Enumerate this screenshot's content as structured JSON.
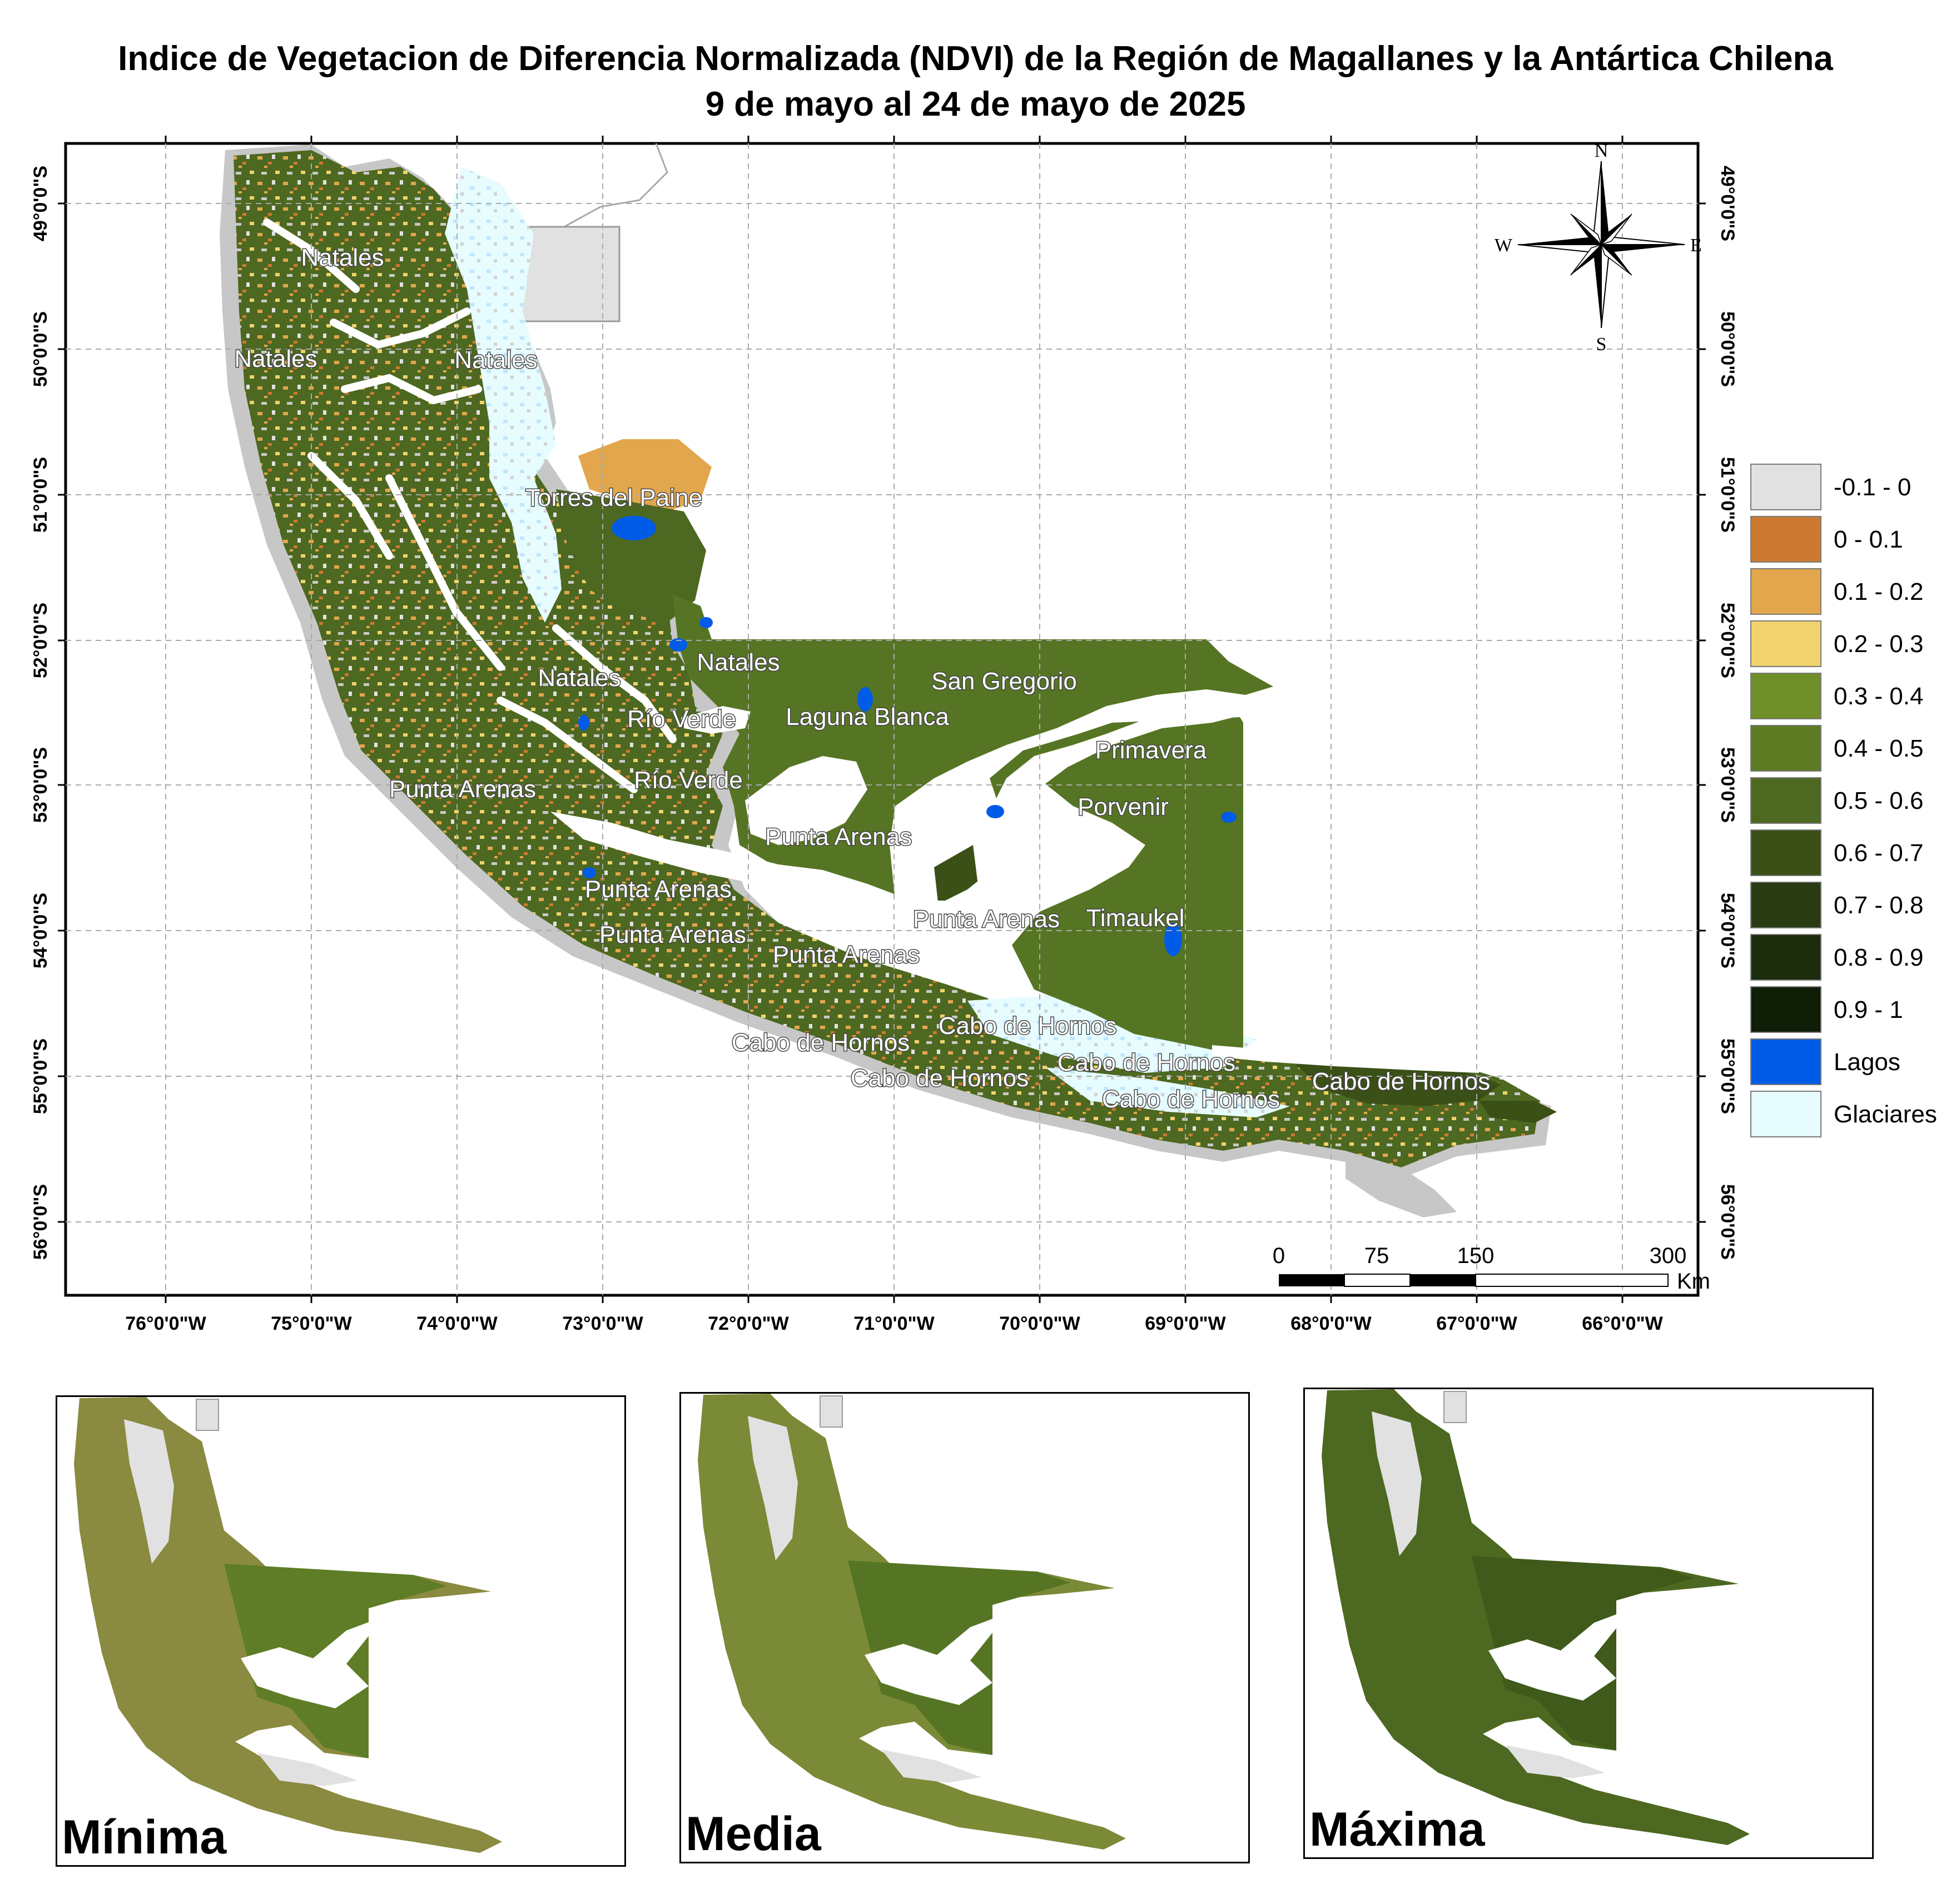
{
  "title": {
    "line1": "Indice de Vegetacion de Diferencia Normalizada (NDVI) de la Región de Magallanes y la Antártica Chilena",
    "line2": "9 de mayo al 24 de mayo de 2025"
  },
  "map": {
    "lon_ticks": [
      "76°0'0\"W",
      "75°0'0\"W",
      "74°0'0\"W",
      "73°0'0\"W",
      "72°0'0\"W",
      "71°0'0\"W",
      "70°0'0\"W",
      "69°0'0\"W",
      "68°0'0\"W",
      "67°0'0\"W",
      "66°0'0\"W"
    ],
    "lat_ticks": [
      "49°0'0\"S",
      "50°0'0\"S",
      "51°0'0\"S",
      "52°0'0\"S",
      "53°0'0\"S",
      "54°0'0\"S",
      "55°0'0\"S",
      "56°0'0\"S"
    ],
    "places": [
      "Natales",
      "Natales",
      "Natales",
      "Torres del Paine",
      "Natales",
      "Natales",
      "Río Verde",
      "Laguna Blanca",
      "San Gregorio",
      "Primavera",
      "Punta Arenas",
      "Río Verde",
      "Porvenir",
      "Punta Arenas",
      "Punta Arenas",
      "Punta Arenas",
      "Punta Arenas",
      "Timaukel",
      "Punta Arenas",
      "Cabo de Hornos",
      "Cabo de Hornos",
      "Cabo de Hornos",
      "Cabo de Hornos",
      "Cabo de Hornos",
      "Cabo de Hornos"
    ],
    "north_arrow": {
      "n": "N",
      "s": "S",
      "e": "E",
      "w": "W",
      "icon": "compass-rose-icon"
    },
    "scale_bar": {
      "labels": [
        "0",
        "75",
        "150",
        "300"
      ],
      "unit": "Km"
    }
  },
  "legend": [
    {
      "label": "-0.1 - 0",
      "color": "#e1e1e1"
    },
    {
      "label": "0 - 0.1",
      "color": "#cd7932"
    },
    {
      "label": "0.1 - 0.2",
      "color": "#e2a64c"
    },
    {
      "label": "0.2 - 0.3",
      "color": "#f0d36c"
    },
    {
      "label": "0.3 - 0.4",
      "color": "#6f8f2a"
    },
    {
      "label": "0.4 - 0.5",
      "color": "#5c7b22"
    },
    {
      "label": "0.5 - 0.6",
      "color": "#4d6820"
    },
    {
      "label": "0.6 - 0.7",
      "color": "#3a5017"
    },
    {
      "label": "0.7 - 0.8",
      "color": "#293b12"
    },
    {
      "label": "0.8 - 0.9",
      "color": "#1c2d0d"
    },
    {
      "label": "0.9 - 1",
      "color": "#0f1e07"
    },
    {
      "label": "Lagos",
      "color": "#005ce6"
    },
    {
      "label": "Glaciares",
      "color": "#e6fcff"
    }
  ],
  "insets": [
    {
      "label": "Mínima"
    },
    {
      "label": "Media"
    },
    {
      "label": "Máxima"
    }
  ]
}
